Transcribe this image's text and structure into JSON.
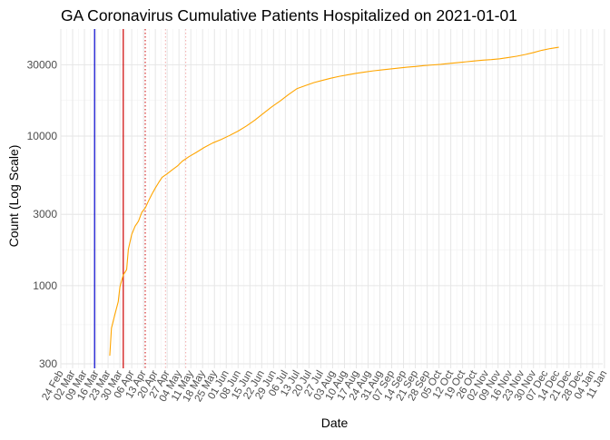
{
  "chart_data": {
    "type": "line",
    "title": "GA Coronavirus Cumulative Patients Hospitalized on 2021-01-01",
    "xlabel": "Date",
    "ylabel": "Count (Log Scale)",
    "y_scale": "log10",
    "ylim": [
      280,
      52000
    ],
    "xlim_days_from_2020_02_24": [
      0,
      321
    ],
    "grid": true,
    "y_ticks": [
      {
        "value": 300,
        "label": "300"
      },
      {
        "value": 1000,
        "label": "1000"
      },
      {
        "value": 3000,
        "label": "3000"
      },
      {
        "value": 10000,
        "label": "10000"
      },
      {
        "value": 30000,
        "label": "30000"
      }
    ],
    "x_ticks": [
      "24 Feb",
      "02 Mar",
      "09 Mar",
      "16 Mar",
      "23 Mar",
      "30 Mar",
      "06 Apr",
      "13 Apr",
      "20 Apr",
      "27 Apr",
      "04 May",
      "11 May",
      "18 May",
      "25 May",
      "01 Jun",
      "08 Jun",
      "15 Jun",
      "22 Jun",
      "29 Jun",
      "06 Jul",
      "13 Jul",
      "20 Jul",
      "27 Jul",
      "03 Aug",
      "10 Aug",
      "17 Aug",
      "24 Aug",
      "31 Aug",
      "07 Sep",
      "14 Sep",
      "21 Sep",
      "28 Sep",
      "05 Oct",
      "12 Oct",
      "19 Oct",
      "26 Oct",
      "02 Nov",
      "09 Nov",
      "16 Nov",
      "23 Nov",
      "30 Nov",
      "07 Dec",
      "14 Dec",
      "21 Dec",
      "28 Dec",
      "04 Jan",
      "11 Jan"
    ],
    "reference_lines": [
      {
        "day": 20,
        "color": "#0000cc",
        "style": "solid"
      },
      {
        "day": 37,
        "color": "#cc0000",
        "style": "solid"
      },
      {
        "day": 50,
        "color": "#cc0000",
        "style": "dotted"
      },
      {
        "day": 62,
        "color": "#f2aaaa",
        "style": "dotted"
      },
      {
        "day": 74,
        "color": "#f2aaaa",
        "style": "dotted"
      }
    ],
    "series": [
      {
        "name": "Cumulative Patients Hospitalized",
        "color": "#ffa500",
        "points": [
          [
            29,
            340
          ],
          [
            30,
            520
          ],
          [
            32,
            640
          ],
          [
            34,
            780
          ],
          [
            35,
            980
          ],
          [
            37,
            1180
          ],
          [
            39,
            1280
          ],
          [
            40,
            1750
          ],
          [
            42,
            2200
          ],
          [
            44,
            2500
          ],
          [
            46,
            2700
          ],
          [
            48,
            3100
          ],
          [
            50,
            3300
          ],
          [
            52,
            3700
          ],
          [
            54,
            4100
          ],
          [
            56,
            4500
          ],
          [
            58,
            4900
          ],
          [
            60,
            5300
          ],
          [
            63,
            5600
          ],
          [
            66,
            5950
          ],
          [
            69,
            6300
          ],
          [
            72,
            6800
          ],
          [
            76,
            7300
          ],
          [
            80,
            7750
          ],
          [
            85,
            8400
          ],
          [
            90,
            9000
          ],
          [
            95,
            9500
          ],
          [
            100,
            10100
          ],
          [
            105,
            10800
          ],
          [
            110,
            11700
          ],
          [
            115,
            12800
          ],
          [
            120,
            14200
          ],
          [
            125,
            15700
          ],
          [
            130,
            17200
          ],
          [
            135,
            19000
          ],
          [
            140,
            20800
          ],
          [
            145,
            21800
          ],
          [
            150,
            22800
          ],
          [
            155,
            23600
          ],
          [
            160,
            24400
          ],
          [
            165,
            25100
          ],
          [
            170,
            25700
          ],
          [
            175,
            26300
          ],
          [
            180,
            26800
          ],
          [
            185,
            27300
          ],
          [
            190,
            27700
          ],
          [
            195,
            28100
          ],
          [
            200,
            28500
          ],
          [
            205,
            28900
          ],
          [
            210,
            29200
          ],
          [
            215,
            29600
          ],
          [
            220,
            29900
          ],
          [
            225,
            30200
          ],
          [
            230,
            30600
          ],
          [
            235,
            31000
          ],
          [
            240,
            31400
          ],
          [
            245,
            31800
          ],
          [
            250,
            32200
          ],
          [
            255,
            32500
          ],
          [
            260,
            32900
          ],
          [
            265,
            33500
          ],
          [
            270,
            34200
          ],
          [
            275,
            35100
          ],
          [
            280,
            36200
          ],
          [
            285,
            37500
          ],
          [
            290,
            38500
          ],
          [
            295,
            39300
          ]
        ]
      }
    ]
  }
}
